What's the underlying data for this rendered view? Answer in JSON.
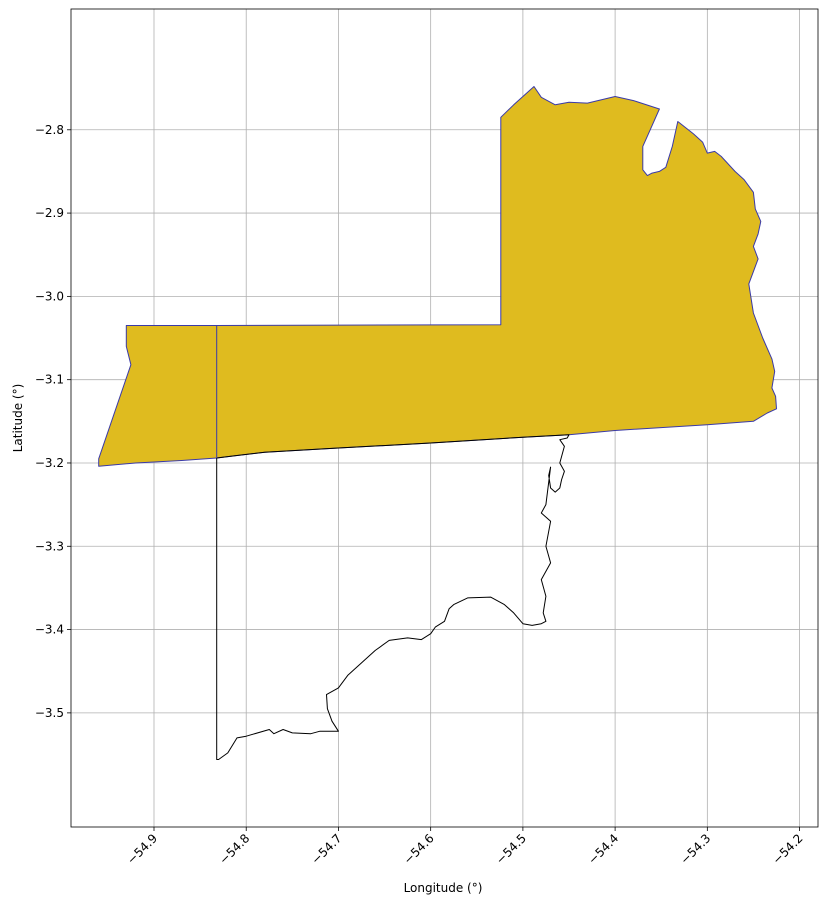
{
  "chart_data": {
    "type": "map",
    "xlabel": "Longitude (°)",
    "ylabel": "Latitude (°)",
    "xlim": [
      -54.99,
      -54.18
    ],
    "ylim": [
      -3.637,
      -2.655
    ],
    "grid": true,
    "x_ticks": [
      -54.9,
      -54.8,
      -54.7,
      -54.6,
      -54.5,
      -54.4,
      -54.3,
      -54.2
    ],
    "x_tick_labels": [
      "−54.9",
      "−54.8",
      "−54.7",
      "−54.6",
      "−54.5",
      "−54.4",
      "−54.3",
      "−54.2"
    ],
    "y_ticks": [
      -2.8,
      -2.9,
      -3.0,
      -3.1,
      -3.2,
      -3.3,
      -3.4,
      -3.5
    ],
    "y_tick_labels": [
      "−2.8",
      "−2.9",
      "−3.0",
      "−3.1",
      "−3.2",
      "−3.3",
      "−3.4",
      "−3.5"
    ],
    "x_tick_rotation_deg": 45,
    "layers": [
      {
        "id": "filled-region",
        "fill": "#dfbb1f",
        "edge": "#3a3aa8",
        "rings": [
          [
            [
              -54.96,
              -3.204
            ],
            [
              -54.92,
              -3.2
            ],
            [
              -54.87,
              -3.197
            ],
            [
              -54.832,
              -3.194
            ],
            [
              -54.81,
              -3.191
            ],
            [
              -54.78,
              -3.187
            ],
            [
              -54.7,
              -3.182
            ],
            [
              -54.6,
              -3.176
            ],
            [
              -54.5,
              -3.169
            ],
            [
              -54.45,
              -3.166
            ],
            [
              -54.4,
              -3.161
            ],
            [
              -54.3,
              -3.154
            ],
            [
              -54.25,
              -3.15
            ],
            [
              -54.235,
              -3.14
            ],
            [
              -54.225,
              -3.135
            ],
            [
              -54.226,
              -3.12
            ],
            [
              -54.23,
              -3.11
            ],
            [
              -54.227,
              -3.09
            ],
            [
              -54.23,
              -3.075
            ],
            [
              -54.24,
              -3.05
            ],
            [
              -54.25,
              -3.02
            ],
            [
              -54.255,
              -2.985
            ],
            [
              -54.245,
              -2.955
            ],
            [
              -54.25,
              -2.94
            ],
            [
              -54.245,
              -2.925
            ],
            [
              -54.242,
              -2.91
            ],
            [
              -54.248,
              -2.895
            ],
            [
              -54.25,
              -2.875
            ],
            [
              -54.26,
              -2.86
            ],
            [
              -54.27,
              -2.85
            ],
            [
              -54.285,
              -2.832
            ],
            [
              -54.292,
              -2.826
            ],
            [
              -54.3,
              -2.828
            ],
            [
              -54.305,
              -2.815
            ],
            [
              -54.315,
              -2.805
            ],
            [
              -54.332,
              -2.79
            ],
            [
              -54.338,
              -2.82
            ],
            [
              -54.345,
              -2.845
            ],
            [
              -54.352,
              -2.85
            ],
            [
              -54.36,
              -2.852
            ],
            [
              -54.365,
              -2.855
            ],
            [
              -54.37,
              -2.848
            ],
            [
              -54.37,
              -2.82
            ],
            [
              -54.362,
              -2.8
            ],
            [
              -54.352,
              -2.775
            ],
            [
              -54.38,
              -2.765
            ],
            [
              -54.4,
              -2.76
            ],
            [
              -54.43,
              -2.768
            ],
            [
              -54.45,
              -2.767
            ],
            [
              -54.465,
              -2.77
            ],
            [
              -54.48,
              -2.761
            ],
            [
              -54.488,
              -2.748
            ],
            [
              -54.5,
              -2.76
            ],
            [
              -54.51,
              -2.77
            ],
            [
              -54.524,
              -2.785
            ],
            [
              -54.524,
              -3.034
            ],
            [
              -54.832,
              -3.035
            ],
            [
              -54.93,
              -3.035
            ],
            [
              -54.93,
              -3.06
            ],
            [
              -54.925,
              -3.082
            ],
            [
              -54.96,
              -3.195
            ],
            [
              -54.96,
              -3.204
            ]
          ]
        ]
      },
      {
        "id": "unfilled-region",
        "fill": "none",
        "edge": "#000000",
        "rings": [
          [
            [
              -54.832,
              -3.194
            ],
            [
              -54.81,
              -3.191
            ],
            [
              -54.78,
              -3.187
            ],
            [
              -54.7,
              -3.182
            ],
            [
              -54.6,
              -3.176
            ],
            [
              -54.5,
              -3.169
            ],
            [
              -54.45,
              -3.166
            ],
            [
              -54.452,
              -3.17
            ],
            [
              -54.46,
              -3.172
            ],
            [
              -54.455,
              -3.18
            ],
            [
              -54.46,
              -3.2
            ],
            [
              -54.455,
              -3.21
            ],
            [
              -54.458,
              -3.22
            ],
            [
              -54.46,
              -3.23
            ],
            [
              -54.465,
              -3.235
            ],
            [
              -54.47,
              -3.23
            ],
            [
              -54.472,
              -3.215
            ],
            [
              -54.47,
              -3.205
            ],
            [
              -54.475,
              -3.25
            ],
            [
              -54.48,
              -3.26
            ],
            [
              -54.47,
              -3.27
            ],
            [
              -54.475,
              -3.3
            ],
            [
              -54.47,
              -3.32
            ],
            [
              -54.48,
              -3.34
            ],
            [
              -54.475,
              -3.36
            ],
            [
              -54.478,
              -3.38
            ],
            [
              -54.475,
              -3.39
            ],
            [
              -54.48,
              -3.393
            ],
            [
              -54.49,
              -3.395
            ],
            [
              -54.5,
              -3.393
            ],
            [
              -54.51,
              -3.38
            ],
            [
              -54.52,
              -3.37
            ],
            [
              -54.535,
              -3.361
            ],
            [
              -54.56,
              -3.362
            ],
            [
              -54.575,
              -3.37
            ],
            [
              -54.58,
              -3.375
            ],
            [
              -54.585,
              -3.39
            ],
            [
              -54.595,
              -3.397
            ],
            [
              -54.6,
              -3.405
            ],
            [
              -54.61,
              -3.412
            ],
            [
              -54.625,
              -3.41
            ],
            [
              -54.645,
              -3.413
            ],
            [
              -54.66,
              -3.425
            ],
            [
              -54.675,
              -3.44
            ],
            [
              -54.69,
              -3.455
            ],
            [
              -54.7,
              -3.47
            ],
            [
              -54.713,
              -3.478
            ],
            [
              -54.712,
              -3.495
            ],
            [
              -54.707,
              -3.51
            ],
            [
              -54.7,
              -3.522
            ],
            [
              -54.72,
              -3.522
            ],
            [
              -54.73,
              -3.525
            ],
            [
              -54.75,
              -3.524
            ],
            [
              -54.76,
              -3.52
            ],
            [
              -54.77,
              -3.525
            ],
            [
              -54.775,
              -3.52
            ],
            [
              -54.8,
              -3.528
            ],
            [
              -54.81,
              -3.53
            ],
            [
              -54.82,
              -3.548
            ],
            [
              -54.83,
              -3.556
            ],
            [
              -54.832,
              -3.556
            ],
            [
              -54.832,
              -3.194
            ]
          ]
        ]
      },
      {
        "id": "internal-boundary",
        "fill": "none",
        "edge": "#3a3aa8",
        "lines": [
          [
            [
              -54.832,
              -3.035
            ],
            [
              -54.832,
              -3.194
            ]
          ]
        ]
      }
    ]
  }
}
